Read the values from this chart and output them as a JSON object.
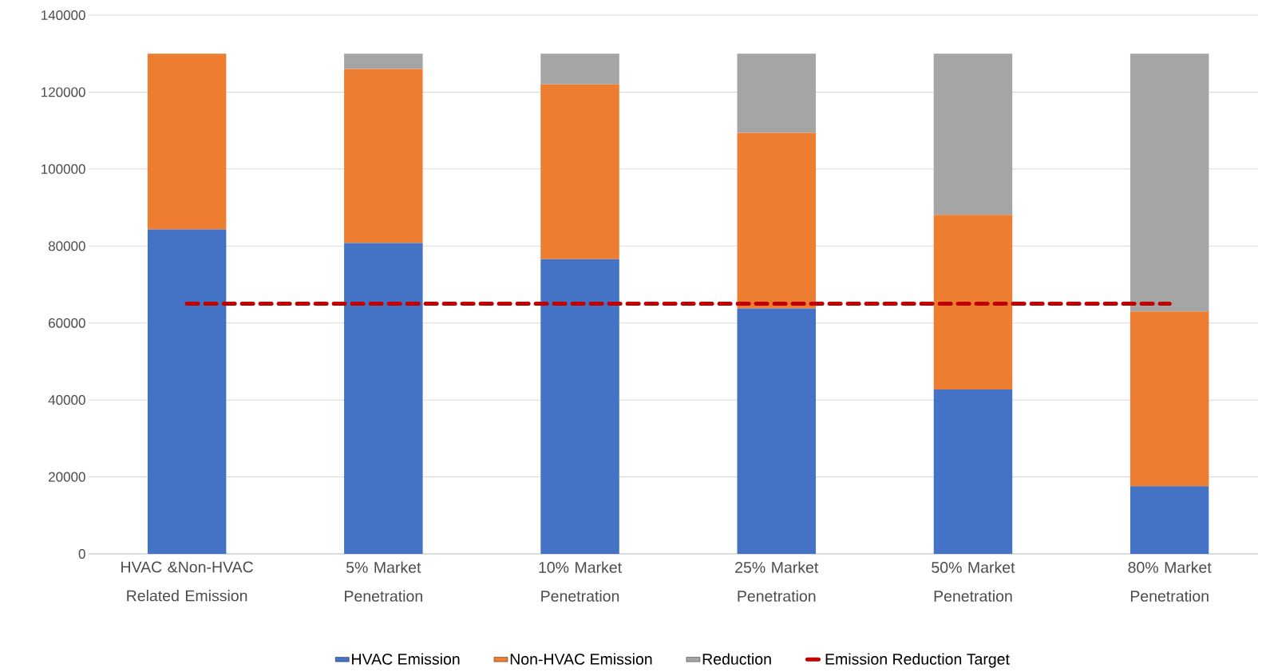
{
  "chart_data": {
    "type": "bar",
    "stacked": true,
    "categories": [
      "HVAC &Non-HVAC Related Emission",
      "5% Market Penetration",
      "10% Market Penetration",
      "25% Market Penetration",
      "50% Market Penetration",
      "80% Market Penetration"
    ],
    "series": [
      {
        "name": "HVAC Emission",
        "color": "#4472c4",
        "values": [
          84300,
          80800,
          76600,
          63800,
          42700,
          17600
        ]
      },
      {
        "name": "Non-HVAC Emission",
        "color": "#ed7d31",
        "values": [
          45700,
          45200,
          45400,
          45600,
          45400,
          45400
        ]
      },
      {
        "name": "Reduction",
        "color": "#a5a5a5",
        "values": [
          0,
          4000,
          8000,
          20600,
          41900,
          67000
        ]
      },
      {
        "name": "Emission Reduction Target",
        "color": "#c00000",
        "type": "line",
        "line_style": "dashed",
        "values": [
          65000,
          65000,
          65000,
          65000,
          65000,
          65000
        ]
      }
    ],
    "ylim": [
      0,
      140000
    ],
    "yticks": [
      0,
      20000,
      40000,
      60000,
      80000,
      100000,
      120000,
      140000
    ],
    "grid": "y",
    "legend": "bottom"
  }
}
